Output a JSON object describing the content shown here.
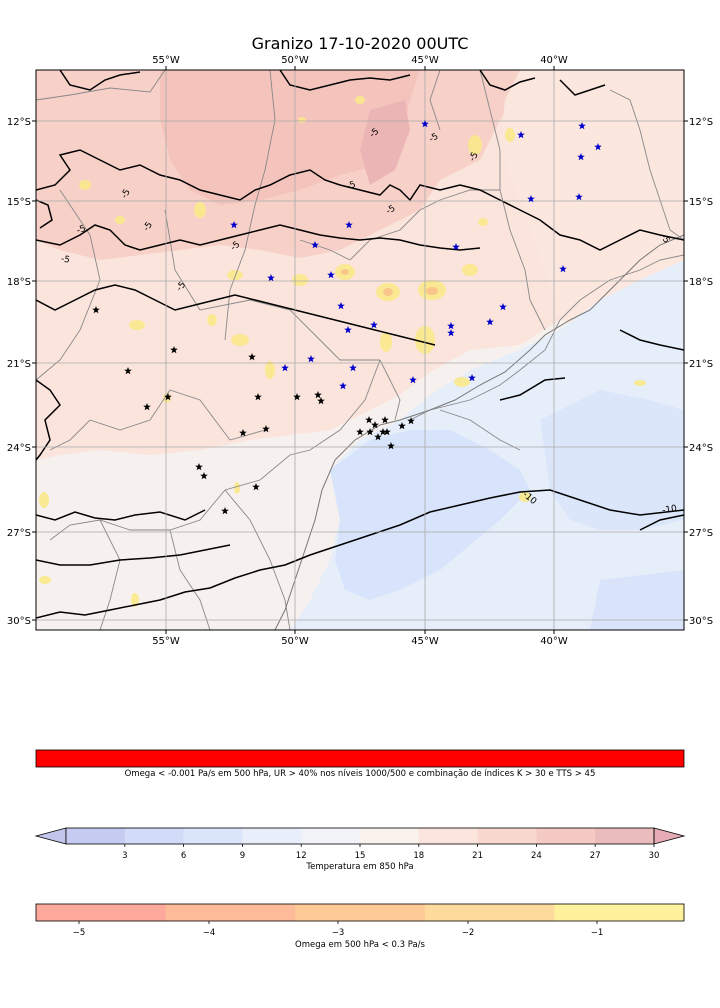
{
  "title": "Granizo 17-10-2020 00UTC",
  "map": {
    "lon_ticks": [
      "55°W",
      "50°W",
      "45°W",
      "40°W"
    ],
    "lat_ticks": [
      "12°S",
      "15°S",
      "18°S",
      "21°S",
      "24°S",
      "27°S",
      "30°S"
    ],
    "contour_labels": [
      "-5",
      "-5",
      "-5",
      "-5",
      "-5",
      "-5",
      "-5",
      "-5",
      "-5",
      "-5",
      "-5",
      "-5",
      "-10",
      "-10"
    ],
    "colors": {
      "warm": "#f7cfc8",
      "warm_light": "#fbe4dc",
      "neutral": "#f6f1ee",
      "cool_light": "#e6eefa",
      "cool": "#d6e2fb",
      "omega_yellow": "#fbe98a",
      "omega_orange": "#f8c28a",
      "black_star": "#000000",
      "blue_star": "#0000cc"
    }
  },
  "criteria_bar": {
    "label": "Omega < -0.001 Pa/s em 500 hPa, UR > 40% nos níveis 1000/500 e combinação de índices K > 30 e TTS > 45",
    "color": "#ff0000"
  },
  "temp_bar": {
    "label": "Temperatura em 850 hPa",
    "ticks": [
      "3",
      "6",
      "9",
      "12",
      "15",
      "18",
      "21",
      "24",
      "27",
      "30"
    ],
    "colors": [
      "#c6ccf1",
      "#d2dcf8",
      "#dce6fb",
      "#e8eefa",
      "#f1f3f6",
      "#f8f1ec",
      "#fbe5dc",
      "#f9d8cf",
      "#f6cac4",
      "#eabcbc"
    ],
    "under_color": "#c2c6ec",
    "over_color": "#e6acb6"
  },
  "omega_bar": {
    "label": "Omega em 500 hPa < 0.3 Pa/s",
    "ticks": [
      "−5",
      "−4",
      "−3",
      "−2",
      "−1"
    ],
    "colors": [
      "#fca89a",
      "#fdbb9a",
      "#fecb96",
      "#fedb9c",
      "#fef29c"
    ]
  }
}
